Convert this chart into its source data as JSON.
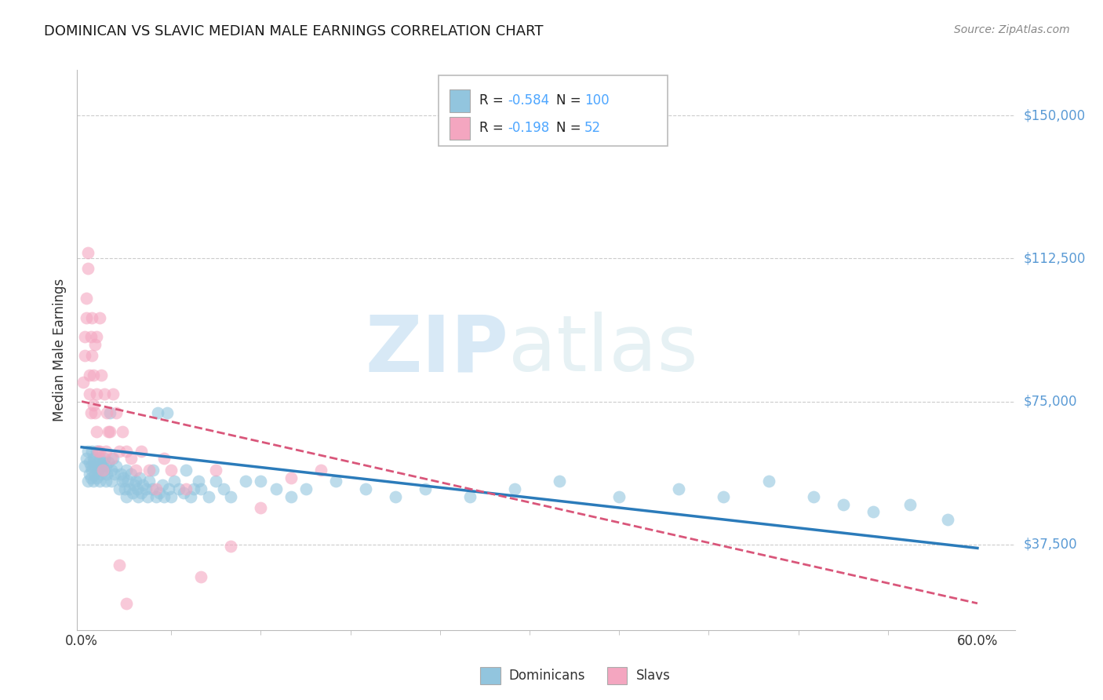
{
  "title": "DOMINICAN VS SLAVIC MEDIAN MALE EARNINGS CORRELATION CHART",
  "source": "Source: ZipAtlas.com",
  "ylabel": "Median Male Earnings",
  "yticks": [
    37500,
    75000,
    112500,
    150000
  ],
  "ytick_labels": [
    "$37,500",
    "$75,000",
    "$112,500",
    "$150,000"
  ],
  "ymin": 15000,
  "ymax": 162000,
  "xmin": -0.003,
  "xmax": 0.625,
  "watermark_zip": "ZIP",
  "watermark_atlas": "atlas",
  "legend_r1_label": "R = ",
  "legend_r1_val": "-0.584",
  "legend_n1_label": "N = ",
  "legend_n1_val": "100",
  "legend_r2_label": "R =  ",
  "legend_r2_val": "-0.198",
  "legend_n2_label": "N =  ",
  "legend_n2_val": "52",
  "blue_color": "#92c5de",
  "pink_color": "#f4a6c0",
  "blue_line_color": "#2b7bba",
  "pink_line_color": "#d9567a",
  "grid_color": "#cccccc",
  "axis_color": "#bbbbbb",
  "right_label_color": "#5b9bd5",
  "text_color": "#333333",
  "source_color": "#888888",
  "legend_text_color": "#222222",
  "legend_val_color": "#4da6ff",
  "background_color": "#ffffff",
  "figure_bg": "#ffffff",
  "blue_scatter_x": [
    0.002,
    0.003,
    0.004,
    0.004,
    0.005,
    0.005,
    0.006,
    0.006,
    0.007,
    0.007,
    0.008,
    0.008,
    0.008,
    0.009,
    0.009,
    0.01,
    0.01,
    0.011,
    0.011,
    0.012,
    0.012,
    0.013,
    0.013,
    0.014,
    0.015,
    0.015,
    0.016,
    0.016,
    0.017,
    0.018,
    0.019,
    0.02,
    0.02,
    0.021,
    0.022,
    0.023,
    0.025,
    0.026,
    0.027,
    0.028,
    0.029,
    0.03,
    0.03,
    0.031,
    0.032,
    0.033,
    0.034,
    0.035,
    0.036,
    0.037,
    0.038,
    0.039,
    0.04,
    0.041,
    0.043,
    0.044,
    0.045,
    0.047,
    0.048,
    0.05,
    0.051,
    0.052,
    0.054,
    0.055,
    0.057,
    0.058,
    0.06,
    0.062,
    0.065,
    0.068,
    0.07,
    0.073,
    0.075,
    0.078,
    0.08,
    0.085,
    0.09,
    0.095,
    0.1,
    0.11,
    0.12,
    0.13,
    0.14,
    0.15,
    0.17,
    0.19,
    0.21,
    0.23,
    0.26,
    0.29,
    0.32,
    0.36,
    0.4,
    0.43,
    0.46,
    0.49,
    0.51,
    0.53,
    0.555,
    0.58
  ],
  "blue_scatter_y": [
    58000,
    60000,
    62000,
    54000,
    59000,
    56000,
    58000,
    55000,
    62000,
    57000,
    60000,
    54000,
    59000,
    58000,
    56000,
    55000,
    62000,
    59000,
    57000,
    60000,
    54000,
    58000,
    56000,
    59000,
    57000,
    60000,
    54000,
    58000,
    56000,
    59000,
    72000,
    57000,
    54000,
    60000,
    56000,
    58000,
    52000,
    56000,
    54000,
    55000,
    52000,
    57000,
    50000,
    54000,
    52000,
    56000,
    51000,
    53000,
    54000,
    52000,
    50000,
    55000,
    51000,
    53000,
    52000,
    50000,
    54000,
    52000,
    57000,
    50000,
    72000,
    51000,
    53000,
    50000,
    72000,
    52000,
    50000,
    54000,
    52000,
    51000,
    57000,
    50000,
    52000,
    54000,
    52000,
    50000,
    54000,
    52000,
    50000,
    54000,
    54000,
    52000,
    50000,
    52000,
    54000,
    52000,
    50000,
    52000,
    50000,
    52000,
    54000,
    50000,
    52000,
    50000,
    54000,
    50000,
    48000,
    46000,
    48000,
    44000
  ],
  "pink_scatter_x": [
    0.001,
    0.002,
    0.002,
    0.003,
    0.003,
    0.004,
    0.004,
    0.005,
    0.005,
    0.006,
    0.006,
    0.007,
    0.007,
    0.008,
    0.008,
    0.009,
    0.009,
    0.01,
    0.01,
    0.011,
    0.012,
    0.013,
    0.015,
    0.017,
    0.019,
    0.021,
    0.023,
    0.025,
    0.027,
    0.03,
    0.033,
    0.036,
    0.04,
    0.045,
    0.05,
    0.055,
    0.06,
    0.07,
    0.08,
    0.09,
    0.1,
    0.12,
    0.14,
    0.16,
    0.01,
    0.012,
    0.014,
    0.016,
    0.018,
    0.02,
    0.025,
    0.03
  ],
  "pink_scatter_y": [
    80000,
    92000,
    87000,
    102000,
    97000,
    110000,
    114000,
    77000,
    82000,
    92000,
    72000,
    97000,
    87000,
    82000,
    74000,
    90000,
    72000,
    92000,
    77000,
    62000,
    97000,
    82000,
    77000,
    72000,
    67000,
    77000,
    72000,
    62000,
    67000,
    62000,
    60000,
    57000,
    62000,
    57000,
    52000,
    60000,
    57000,
    52000,
    29000,
    57000,
    37000,
    47000,
    55000,
    57000,
    67000,
    62000,
    57000,
    62000,
    67000,
    60000,
    32000,
    22000
  ],
  "blue_trend_x": [
    0.0,
    0.6
  ],
  "blue_trend_y": [
    63000,
    36500
  ],
  "pink_trend_x": [
    0.0,
    0.6
  ],
  "pink_trend_y": [
    75000,
    22000
  ],
  "xtick_minor_positions": [
    0.0,
    0.06,
    0.12,
    0.18,
    0.24,
    0.3,
    0.36,
    0.42,
    0.48,
    0.54,
    0.6
  ]
}
